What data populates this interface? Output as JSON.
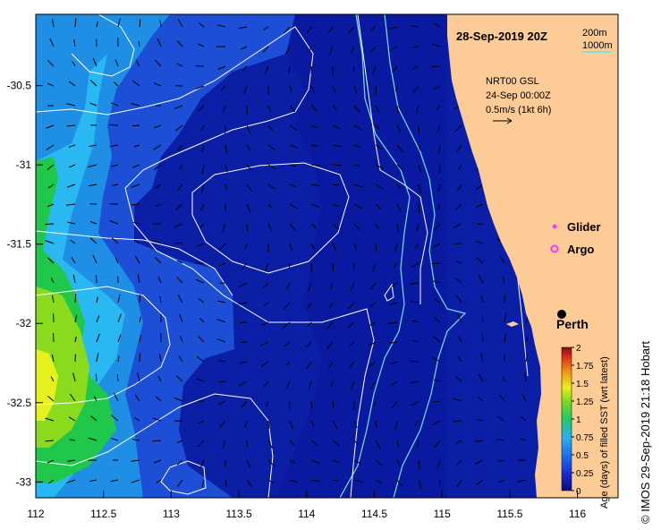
{
  "title": "28-Sep-2019 20Z",
  "contour_legend": {
    "shallow": "200m",
    "deep": "1000m",
    "color": "#7fe0e0"
  },
  "current_info": {
    "source": "NRT00 GSL",
    "date": "24-Sep 00:00Z",
    "scale": "0.5m/s (1kt 6h)"
  },
  "legend_items": [
    {
      "label": "Glider",
      "color": "#ff33ff",
      "icon": "diamond-icon"
    },
    {
      "label": "Argo",
      "color": "#ff33ff",
      "icon": "circle-icon"
    }
  ],
  "city": {
    "name": "Perth",
    "lon": 115.86,
    "lat": -31.95
  },
  "colorbar": {
    "label": "Age (days) of filled SST (wrt latest)",
    "ticks": [
      "0",
      "0.25",
      "0.5",
      "0.75",
      "1",
      "1.25",
      "1.5",
      "1.75",
      "2"
    ],
    "min": 0,
    "max": 2
  },
  "credit": "© IMOS 29-Sep-2019 21:18 Hobart",
  "x_ticks": [
    "112",
    "112.5",
    "113",
    "113.5",
    "114",
    "114.5",
    "115",
    "115.5",
    "116"
  ],
  "y_ticks": [
    "-30.5",
    "-31",
    "-31.5",
    "-32",
    "-32.5",
    "-33"
  ],
  "map_extent": {
    "lon_min": 112,
    "lon_max": 116.3,
    "lat_min": -33.1,
    "lat_max": -30.05
  },
  "colors": {
    "ocean": "#0b1ea6",
    "land": "#fccb96",
    "coast": "#0b1ea6"
  }
}
